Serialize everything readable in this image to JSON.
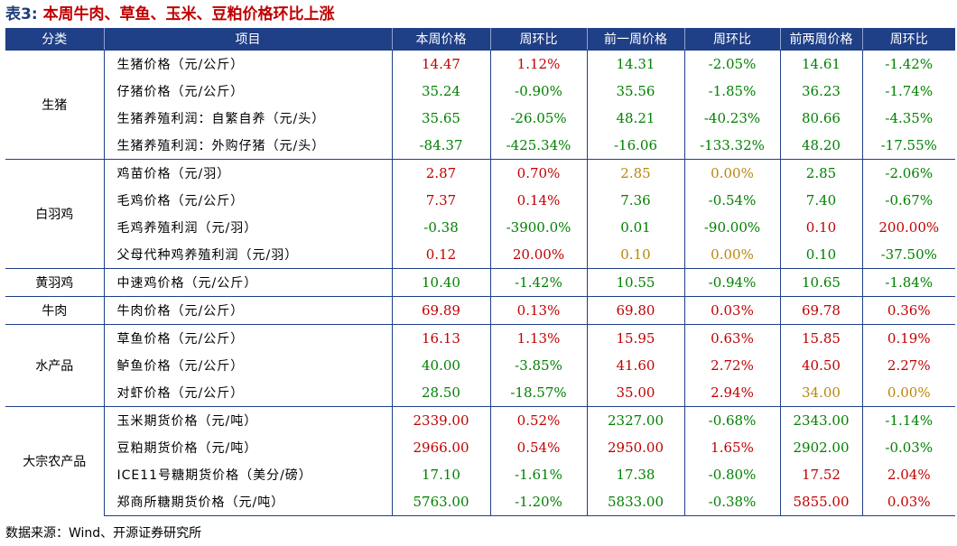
{
  "title": {
    "prefix": "表3:",
    "text": "本周牛肉、草鱼、玉米、豆粕价格环比上涨"
  },
  "columns": [
    "分类",
    "项目",
    "本周价格",
    "周环比",
    "前一周价格",
    "周环比",
    "前两周价格",
    "周环比"
  ],
  "colors": {
    "header_bg": "#1f3f86",
    "up": "#c00000",
    "down": "#008000",
    "flat": "#b8860b"
  },
  "groups": [
    {
      "category": "生猪",
      "rows": [
        {
          "item": "生猪价格（元/公斤）",
          "cur_price": "14.47",
          "cur_chg": "1.12%",
          "cur_trend": "up",
          "prev_price": "14.31",
          "prev_chg": "-2.05%",
          "prev_trend": "down",
          "prev2_price": "14.61",
          "prev2_chg": "-1.42%",
          "prev2_trend": "down"
        },
        {
          "item": "仔猪价格（元/公斤）",
          "cur_price": "35.24",
          "cur_chg": "-0.90%",
          "cur_trend": "down",
          "prev_price": "35.56",
          "prev_chg": "-1.85%",
          "prev_trend": "down",
          "prev2_price": "36.23",
          "prev2_chg": "-1.74%",
          "prev2_trend": "down"
        },
        {
          "item": "生猪养殖利润：自繁自养（元/头）",
          "cur_price": "35.65",
          "cur_chg": "-26.05%",
          "cur_trend": "down",
          "prev_price": "48.21",
          "prev_chg": "-40.23%",
          "prev_trend": "down",
          "prev2_price": "80.66",
          "prev2_chg": "-4.35%",
          "prev2_trend": "down"
        },
        {
          "item": "生猪养殖利润：外购仔猪（元/头）",
          "cur_price": "-84.37",
          "cur_chg": "-425.34%",
          "cur_trend": "down",
          "prev_price": "-16.06",
          "prev_chg": "-133.32%",
          "prev_trend": "down",
          "prev2_price": "48.20",
          "prev2_chg": "-17.55%",
          "prev2_trend": "down"
        }
      ]
    },
    {
      "category": "白羽鸡",
      "rows": [
        {
          "item": "鸡苗价格（元/羽）",
          "cur_price": "2.87",
          "cur_chg": "0.70%",
          "cur_trend": "up",
          "prev_price": "2.85",
          "prev_chg": "0.00%",
          "prev_trend": "flat",
          "prev2_price": "2.85",
          "prev2_chg": "-2.06%",
          "prev2_trend": "down"
        },
        {
          "item": "毛鸡价格（元/公斤）",
          "cur_price": "7.37",
          "cur_chg": "0.14%",
          "cur_trend": "up",
          "prev_price": "7.36",
          "prev_chg": "-0.54%",
          "prev_trend": "down",
          "prev2_price": "7.40",
          "prev2_chg": "-0.67%",
          "prev2_trend": "down"
        },
        {
          "item": "毛鸡养殖利润（元/羽）",
          "cur_price": "-0.38",
          "cur_chg": "-3900.0%",
          "cur_trend": "down",
          "prev_price": "0.01",
          "prev_chg": "-90.00%",
          "prev_trend": "down",
          "prev2_price": "0.10",
          "prev2_chg": "200.00%",
          "prev2_trend": "up"
        },
        {
          "item": "父母代种鸡养殖利润（元/羽）",
          "cur_price": "0.12",
          "cur_chg": "20.00%",
          "cur_trend": "up",
          "prev_price": "0.10",
          "prev_chg": "0.00%",
          "prev_trend": "flat",
          "prev2_price": "0.10",
          "prev2_chg": "-37.50%",
          "prev2_trend": "down"
        }
      ]
    },
    {
      "category": "黄羽鸡",
      "rows": [
        {
          "item": "中速鸡价格（元/公斤）",
          "cur_price": "10.40",
          "cur_chg": "-1.42%",
          "cur_trend": "down",
          "prev_price": "10.55",
          "prev_chg": "-0.94%",
          "prev_trend": "down",
          "prev2_price": "10.65",
          "prev2_chg": "-1.84%",
          "prev2_trend": "down"
        }
      ]
    },
    {
      "category": "牛肉",
      "rows": [
        {
          "item": "牛肉价格（元/公斤）",
          "cur_price": "69.89",
          "cur_chg": "0.13%",
          "cur_trend": "up",
          "prev_price": "69.80",
          "prev_chg": "0.03%",
          "prev_trend": "up",
          "prev2_price": "69.78",
          "prev2_chg": "0.36%",
          "prev2_trend": "up"
        }
      ]
    },
    {
      "category": "水产品",
      "rows": [
        {
          "item": "草鱼价格（元/公斤）",
          "cur_price": "16.13",
          "cur_chg": "1.13%",
          "cur_trend": "up",
          "prev_price": "15.95",
          "prev_chg": "0.63%",
          "prev_trend": "up",
          "prev2_price": "15.85",
          "prev2_chg": "0.19%",
          "prev2_trend": "up"
        },
        {
          "item": "鲈鱼价格（元/公斤）",
          "cur_price": "40.00",
          "cur_chg": "-3.85%",
          "cur_trend": "down",
          "prev_price": "41.60",
          "prev_chg": "2.72%",
          "prev_trend": "up",
          "prev2_price": "40.50",
          "prev2_chg": "2.27%",
          "prev2_trend": "up"
        },
        {
          "item": "对虾价格（元/公斤）",
          "cur_price": "28.50",
          "cur_chg": "-18.57%",
          "cur_trend": "down",
          "prev_price": "35.00",
          "prev_chg": "2.94%",
          "prev_trend": "up",
          "prev2_price": "34.00",
          "prev2_chg": "0.00%",
          "prev2_trend": "flat"
        }
      ]
    },
    {
      "category": "大宗农产品",
      "rows": [
        {
          "item": "玉米期货价格（元/吨）",
          "cur_price": "2339.00",
          "cur_chg": "0.52%",
          "cur_trend": "up",
          "prev_price": "2327.00",
          "prev_chg": "-0.68%",
          "prev_trend": "down",
          "prev2_price": "2343.00",
          "prev2_chg": "-1.14%",
          "prev2_trend": "down"
        },
        {
          "item": "豆粕期货价格（元/吨）",
          "cur_price": "2966.00",
          "cur_chg": "0.54%",
          "cur_trend": "up",
          "prev_price": "2950.00",
          "prev_chg": "1.65%",
          "prev_trend": "up",
          "prev2_price": "2902.00",
          "prev2_chg": "-0.03%",
          "prev2_trend": "down"
        },
        {
          "item": "ICE11号糖期货价格（美分/磅）",
          "cur_price": "17.10",
          "cur_chg": "-1.61%",
          "cur_trend": "down",
          "prev_price": "17.38",
          "prev_chg": "-0.80%",
          "prev_trend": "down",
          "prev2_price": "17.52",
          "prev2_chg": "2.04%",
          "prev2_trend": "up"
        },
        {
          "item": "郑商所糖期货价格（元/吨）",
          "cur_price": "5763.00",
          "cur_chg": "-1.20%",
          "cur_trend": "down",
          "prev_price": "5833.00",
          "prev_chg": "-0.38%",
          "prev_trend": "down",
          "prev2_price": "5855.00",
          "prev2_chg": "0.03%",
          "prev2_trend": "up"
        }
      ]
    }
  ],
  "source": "数据来源：Wind、开源证券研究所"
}
